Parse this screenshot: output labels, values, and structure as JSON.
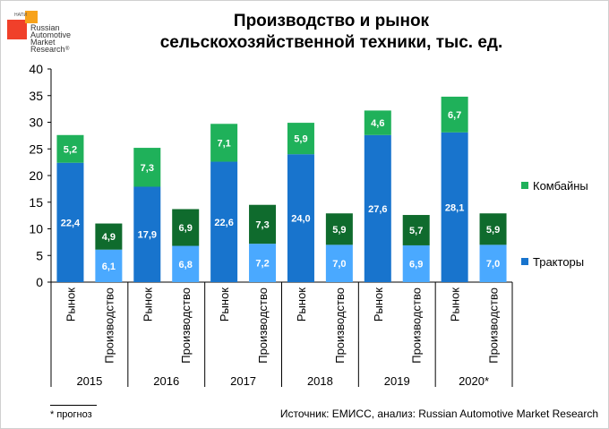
{
  "logo": {
    "text_small": "НАПИ",
    "line1": "Russian",
    "line2": "Automotive",
    "line3": "Market",
    "line4": "Research",
    "reg": "®"
  },
  "title": {
    "line1": "Производство и рынок",
    "line2": "сельскохозяйственной техники, тыс. ед."
  },
  "legend": {
    "combines": "Комбайны",
    "tractors": "Тракторы"
  },
  "footnote": "* прогноз",
  "source": "Источник: ЕМИСС, анализ: Russian Automotive Market Research",
  "chart_data": {
    "type": "bar",
    "stacked": true,
    "title": "Производство и рынок сельскохозяйственной техники, тыс. ед.",
    "ylim": [
      0,
      40
    ],
    "yticks": [
      0,
      5,
      10,
      15,
      20,
      25,
      30,
      35,
      40
    ],
    "years": [
      "2015",
      "2016",
      "2017",
      "2018",
      "2019",
      "2020*"
    ],
    "subcategories": [
      "Рынок",
      "Производство"
    ],
    "series": [
      {
        "name": "Тракторы",
        "colors": {
          "Рынок": "#1874cd",
          "Производство": "#4aa9ff"
        },
        "market": [
          22.4,
          17.9,
          22.6,
          24.0,
          27.6,
          28.1
        ],
        "production": [
          6.1,
          6.8,
          7.2,
          7.0,
          6.9,
          7.0
        ],
        "market_labels": [
          "22,4",
          "17,9",
          "22,6",
          "24,0",
          "27,6",
          "28,1"
        ],
        "production_labels": [
          "6,1",
          "6,8",
          "7,2",
          "7,0",
          "6,9",
          "7,0"
        ]
      },
      {
        "name": "Комбайны",
        "colors": {
          "Рынок": "#1fb15a",
          "Производство": "#0f6b2d"
        },
        "market": [
          5.2,
          7.3,
          7.1,
          5.9,
          4.6,
          6.7
        ],
        "production": [
          4.9,
          6.9,
          7.3,
          5.9,
          5.7,
          5.9
        ],
        "market_labels": [
          "5,2",
          "7,3",
          "7,1",
          "5,9",
          "4,6",
          "6,7"
        ],
        "production_labels": [
          "4,9",
          "6,9",
          "7,3",
          "5,9",
          "5,7",
          "5,9"
        ]
      }
    ],
    "legend_position": "right"
  }
}
